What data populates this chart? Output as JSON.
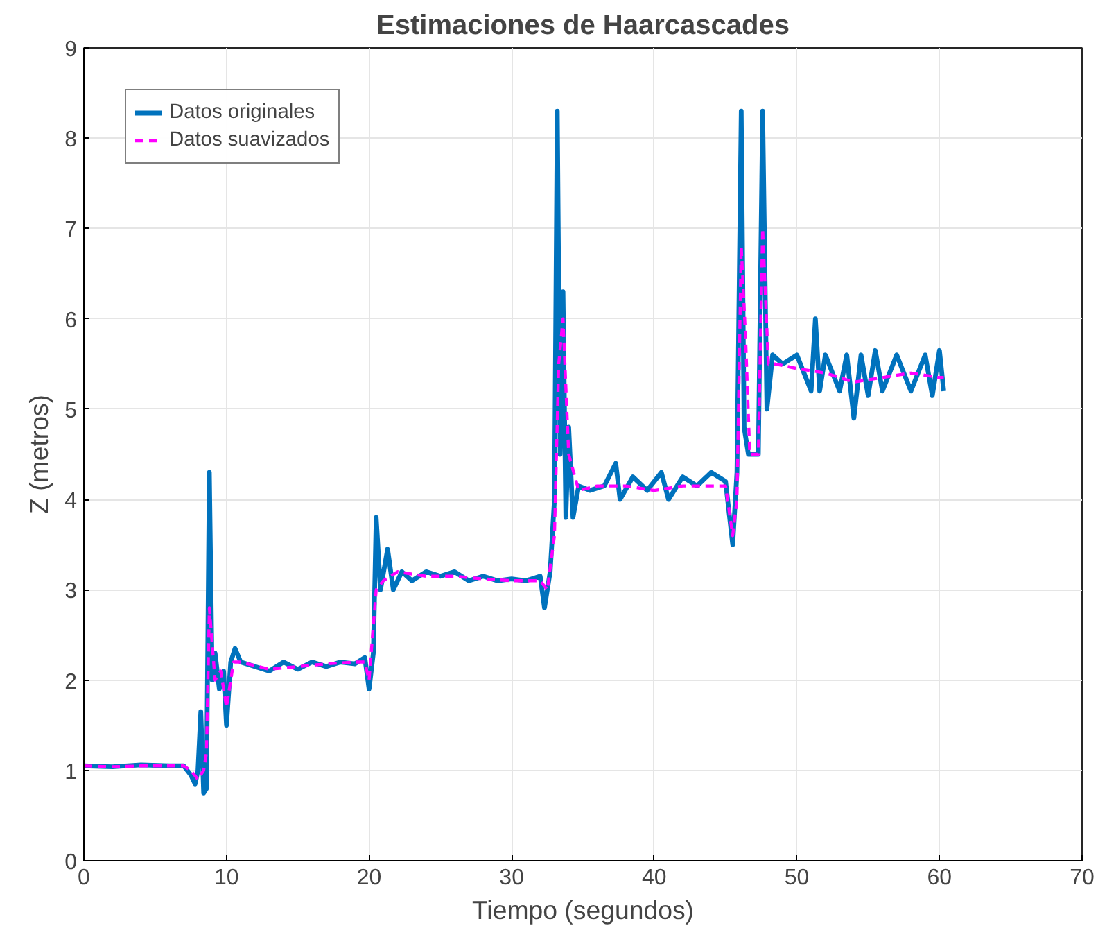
{
  "chart_data": {
    "type": "line",
    "title": "Estimaciones de Haarcascades",
    "xlabel": "Tiempo (segundos)",
    "ylabel": "Z (metros)",
    "xlim": [
      0,
      70
    ],
    "ylim": [
      0,
      9
    ],
    "xticks": [
      0,
      10,
      20,
      30,
      40,
      50,
      60,
      70
    ],
    "yticks": [
      0,
      1,
      2,
      3,
      4,
      5,
      6,
      7,
      8,
      9
    ],
    "grid": true,
    "legend": "top left",
    "series": [
      {
        "name": "Datos originales",
        "color": "#0072bd",
        "line_style": "solid",
        "x": [
          0,
          2,
          4,
          6,
          7,
          7.5,
          7.8,
          8.0,
          8.2,
          8.4,
          8.6,
          8.8,
          9.0,
          9.2,
          9.5,
          9.8,
          10.0,
          10.3,
          10.6,
          11,
          12,
          13,
          14,
          15,
          16,
          17,
          18,
          19,
          19.7,
          20.0,
          20.3,
          20.5,
          20.8,
          21.3,
          21.7,
          22.3,
          23,
          24,
          25,
          26,
          27,
          28,
          29,
          30,
          31,
          32,
          32.3,
          32.7,
          33.0,
          33.2,
          33.4,
          33.6,
          33.8,
          34.0,
          34.3,
          34.7,
          35.5,
          36.5,
          37.3,
          37.6,
          38.5,
          39.5,
          40.5,
          41,
          42,
          43,
          44,
          45,
          45.5,
          45.8,
          46.1,
          46.3,
          46.6,
          47.3,
          47.6,
          47.9,
          48.3,
          49,
          50,
          51,
          51.3,
          51.6,
          52,
          53,
          53.5,
          54,
          54.5,
          55,
          55.5,
          56,
          57,
          58,
          59,
          59.5,
          60,
          60.3
        ],
        "values": [
          1.05,
          1.04,
          1.06,
          1.05,
          1.05,
          0.95,
          0.85,
          1.0,
          1.65,
          0.75,
          0.8,
          4.3,
          2.0,
          2.3,
          1.9,
          2.1,
          1.5,
          2.2,
          2.35,
          2.2,
          2.15,
          2.1,
          2.2,
          2.12,
          2.2,
          2.15,
          2.2,
          2.18,
          2.25,
          1.9,
          2.3,
          3.8,
          3.0,
          3.45,
          3.0,
          3.2,
          3.1,
          3.2,
          3.15,
          3.2,
          3.1,
          3.15,
          3.1,
          3.12,
          3.1,
          3.15,
          2.8,
          3.2,
          4.0,
          8.3,
          4.5,
          6.3,
          3.8,
          4.8,
          3.8,
          4.15,
          4.1,
          4.15,
          4.4,
          4.0,
          4.25,
          4.1,
          4.3,
          4.0,
          4.25,
          4.15,
          4.3,
          4.2,
          3.5,
          4.3,
          8.3,
          4.8,
          4.5,
          4.5,
          8.3,
          5.0,
          5.6,
          5.5,
          5.6,
          5.2,
          6.0,
          5.2,
          5.6,
          5.2,
          5.6,
          4.9,
          5.6,
          5.15,
          5.65,
          5.2,
          5.6,
          5.2,
          5.6,
          5.15,
          5.65,
          5.2
        ]
      },
      {
        "name": "Datos suavizados",
        "color": "#ff00ff",
        "line_style": "dashed",
        "x": [
          0,
          2,
          4,
          6,
          7,
          7.5,
          8.0,
          8.4,
          8.6,
          8.8,
          9.2,
          9.6,
          10.0,
          10.5,
          11,
          13,
          15,
          17,
          19,
          19.7,
          20.0,
          20.5,
          21,
          22,
          24,
          26,
          28,
          30,
          32,
          32.5,
          33.0,
          33.3,
          33.6,
          34.0,
          34.7,
          36,
          38,
          40,
          42,
          44,
          45,
          45.5,
          45.8,
          46.1,
          46.4,
          46.7,
          47.3,
          47.6,
          48.0,
          48.5,
          50,
          52,
          54,
          56,
          58,
          60,
          60.3
        ],
        "values": [
          1.05,
          1.04,
          1.05,
          1.05,
          1.05,
          1.0,
          0.9,
          1.0,
          1.2,
          2.8,
          2.0,
          2.1,
          1.7,
          2.2,
          2.2,
          2.12,
          2.15,
          2.18,
          2.2,
          2.2,
          2.0,
          3.0,
          3.1,
          3.2,
          3.15,
          3.15,
          3.12,
          3.1,
          3.1,
          3.0,
          3.6,
          5.5,
          6.0,
          4.5,
          4.1,
          4.15,
          4.15,
          4.1,
          4.15,
          4.15,
          4.15,
          3.6,
          4.0,
          6.8,
          5.8,
          4.5,
          4.5,
          7.0,
          5.5,
          5.5,
          5.45,
          5.4,
          5.3,
          5.35,
          5.4,
          5.35,
          5.35
        ]
      }
    ]
  }
}
